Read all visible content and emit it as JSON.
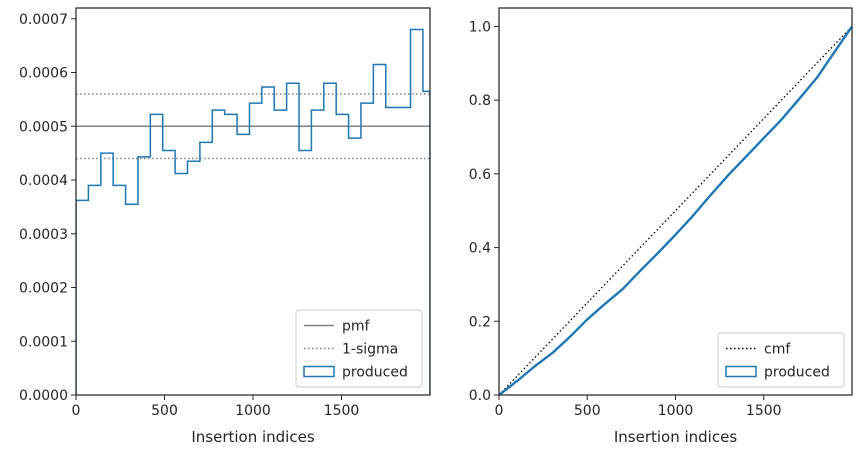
{
  "chart_data": [
    {
      "type": "step",
      "xlabel": "Insertion indices",
      "ylabel": "",
      "xlim": [
        0,
        2000
      ],
      "ylim": [
        0,
        0.00072
      ],
      "xticks": [
        0,
        500,
        1000,
        1500
      ],
      "xtick_labels": [
        "0",
        "500",
        "1000",
        "1500"
      ],
      "yticks": [
        0,
        0.0001,
        0.0002,
        0.0003,
        0.0004,
        0.0005,
        0.0006,
        0.0007
      ],
      "ytick_labels": [
        "0.0000",
        "0.0001",
        "0.0002",
        "0.0003",
        "0.0004",
        "0.0005",
        "0.0006",
        "0.0007"
      ],
      "pmf": 0.0005,
      "sigma_band": [
        0.00044,
        0.00056
      ],
      "bin_edges": [
        0,
        70,
        140,
        210,
        280,
        350,
        420,
        490,
        560,
        630,
        700,
        770,
        840,
        910,
        980,
        1050,
        1120,
        1190,
        1260,
        1330,
        1400,
        1470,
        1540,
        1610,
        1680,
        1750,
        1820,
        1890,
        1960,
        2000
      ],
      "series": [
        {
          "name": "produced",
          "values": [
            0.000362,
            0.00039,
            0.00045,
            0.00039,
            0.000355,
            0.000443,
            0.000522,
            0.000455,
            0.000412,
            0.000435,
            0.00047,
            0.00053,
            0.000522,
            0.000485,
            0.000543,
            0.000573,
            0.00053,
            0.00058,
            0.000455,
            0.00053,
            0.00058,
            0.000522,
            0.000478,
            0.000543,
            0.000615,
            0.000535,
            0.000535,
            0.00068,
            0.000565
          ]
        }
      ],
      "legend": {
        "position": "lower-right",
        "entries": [
          {
            "label": "pmf",
            "style": "solid",
            "color": "#808080"
          },
          {
            "label": "1-sigma",
            "style": "dotted",
            "color": "#808080"
          },
          {
            "label": "produced",
            "style": "patch",
            "color": "#1f77b4"
          }
        ]
      },
      "grid": false
    },
    {
      "type": "line",
      "xlabel": "Insertion indices",
      "ylabel": "",
      "xlim": [
        0,
        2000
      ],
      "ylim": [
        0,
        1.05
      ],
      "xticks": [
        0,
        500,
        1000,
        1500
      ],
      "xtick_labels": [
        "0",
        "500",
        "1000",
        "1500"
      ],
      "yticks": [
        0,
        0.2,
        0.4,
        0.6,
        0.8,
        1.0
      ],
      "ytick_labels": [
        "0.0",
        "0.2",
        "0.4",
        "0.6",
        "0.8",
        "1.0"
      ],
      "series": [
        {
          "name": "cmf",
          "x": [
            0,
            2000
          ],
          "values": [
            0,
            1.0
          ]
        },
        {
          "name": "produced",
          "x": [
            0,
            100,
            200,
            300,
            400,
            500,
            600,
            700,
            800,
            900,
            1000,
            1100,
            1200,
            1300,
            1400,
            1500,
            1600,
            1700,
            1800,
            1900,
            2000
          ],
          "values": [
            0,
            0.037,
            0.077,
            0.113,
            0.157,
            0.205,
            0.247,
            0.287,
            0.337,
            0.385,
            0.435,
            0.487,
            0.543,
            0.597,
            0.647,
            0.697,
            0.747,
            0.803,
            0.86,
            0.93,
            1.0
          ]
        }
      ],
      "legend": {
        "position": "lower-right",
        "entries": [
          {
            "label": "cmf",
            "style": "dotted",
            "color": "#000000"
          },
          {
            "label": "produced",
            "style": "patch",
            "color": "#1f77b4"
          }
        ]
      },
      "grid": false
    }
  ],
  "colors": {
    "produced": "#1f77b4",
    "pmf": "#808080",
    "sigma": "#808080",
    "cmf": "#000000",
    "axes": "#262626"
  }
}
